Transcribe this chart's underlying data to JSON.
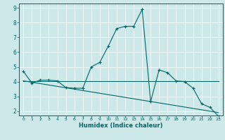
{
  "xlabel": "Humidex (Indice chaleur)",
  "bg_color": "#cce8e8",
  "line_color": "#006666",
  "grid_color": "#ffffff",
  "xlim": [
    -0.5,
    23.5
  ],
  "ylim": [
    1.7,
    9.3
  ],
  "yticks": [
    2,
    3,
    4,
    5,
    6,
    7,
    8,
    9
  ],
  "xticks": [
    0,
    1,
    2,
    3,
    4,
    5,
    6,
    7,
    8,
    9,
    10,
    11,
    12,
    13,
    14,
    15,
    16,
    17,
    18,
    19,
    20,
    21,
    22,
    23
  ],
  "series": [
    {
      "x": [
        0,
        1,
        2,
        3,
        4,
        5,
        6,
        7,
        8,
        9,
        10,
        11,
        12,
        13,
        14,
        15,
        16,
        17,
        18,
        19,
        20,
        21,
        22,
        23
      ],
      "y": [
        4.7,
        3.9,
        4.1,
        4.1,
        4.05,
        3.6,
        3.55,
        3.55,
        5.0,
        5.3,
        6.4,
        7.6,
        7.75,
        7.75,
        8.9,
        2.65,
        4.8,
        4.6,
        4.05,
        4.0,
        3.55,
        2.5,
        2.25,
        1.65
      ]
    },
    {
      "x": [
        0,
        23
      ],
      "y": [
        4.05,
        4.05
      ]
    },
    {
      "x": [
        0,
        23
      ],
      "y": [
        4.05,
        1.9
      ]
    }
  ]
}
